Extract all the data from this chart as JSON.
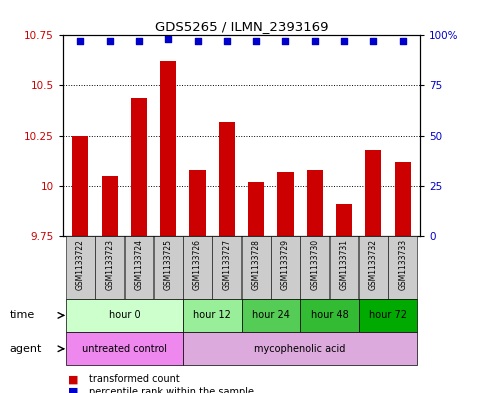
{
  "title": "GDS5265 / ILMN_2393169",
  "samples": [
    "GSM1133722",
    "GSM1133723",
    "GSM1133724",
    "GSM1133725",
    "GSM1133726",
    "GSM1133727",
    "GSM1133728",
    "GSM1133729",
    "GSM1133730",
    "GSM1133731",
    "GSM1133732",
    "GSM1133733"
  ],
  "bar_values": [
    10.25,
    10.05,
    10.44,
    10.62,
    10.08,
    10.32,
    10.02,
    10.07,
    10.08,
    9.91,
    10.18,
    10.12
  ],
  "percentile_values": [
    97,
    97,
    97,
    98,
    97,
    97,
    97,
    97,
    97,
    97,
    97,
    97
  ],
  "ylim_left": [
    9.75,
    10.75
  ],
  "ylim_right": [
    0,
    100
  ],
  "yticks_left": [
    9.75,
    10.0,
    10.25,
    10.5,
    10.75
  ],
  "yticks_right": [
    0,
    25,
    50,
    75,
    100
  ],
  "ytick_labels_left": [
    "9.75",
    "10",
    "10.25",
    "10.5",
    "10.75"
  ],
  "ytick_labels_right": [
    "0",
    "25",
    "50",
    "75",
    "100%"
  ],
  "bar_color": "#cc0000",
  "dot_color": "#0000cc",
  "bar_bottom": 9.75,
  "time_groups": [
    {
      "label": "hour 0",
      "start": 0,
      "end": 3,
      "color": "#ccffcc"
    },
    {
      "label": "hour 12",
      "start": 4,
      "end": 5,
      "color": "#99ee99"
    },
    {
      "label": "hour 24",
      "start": 6,
      "end": 7,
      "color": "#55cc55"
    },
    {
      "label": "hour 48",
      "start": 8,
      "end": 9,
      "color": "#33bb33"
    },
    {
      "label": "hour 72",
      "start": 10,
      "end": 11,
      "color": "#00aa00"
    }
  ],
  "agent_groups": [
    {
      "label": "untreated control",
      "start": 0,
      "end": 3,
      "color": "#ee88ee"
    },
    {
      "label": "mycophenolic acid",
      "start": 4,
      "end": 11,
      "color": "#ddaadd"
    }
  ],
  "legend_items": [
    {
      "label": "transformed count",
      "color": "#cc0000",
      "marker": "s"
    },
    {
      "label": "percentile rank within the sample",
      "color": "#0000cc",
      "marker": "s"
    }
  ],
  "time_label": "time",
  "agent_label": "agent",
  "left_axis_color": "#cc0000",
  "right_axis_color": "#0000cc",
  "bg_sample_label": "#cccccc",
  "grid_color": "#000000"
}
